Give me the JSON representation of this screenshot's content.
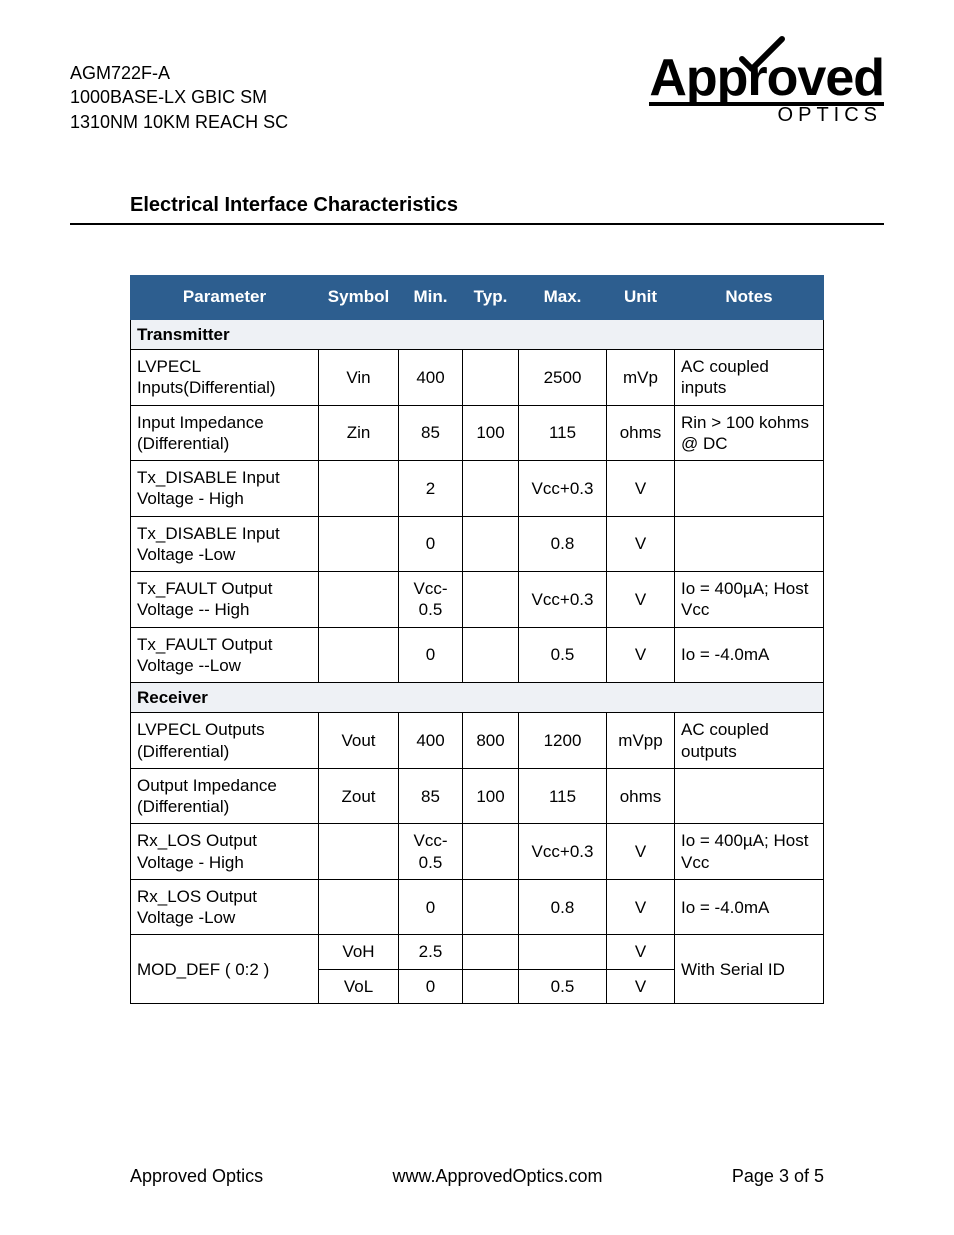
{
  "header": {
    "line1": "AGM722F-A",
    "line2": "1000BASE-LX GBIC SM",
    "line3": "1310NM 10KM REACH SC"
  },
  "logo": {
    "main": "Approved",
    "sub": "OPTICS"
  },
  "section_title": "Electrical Interface Characteristics",
  "table": {
    "headers": [
      "Parameter",
      "Symbol",
      "Min.",
      "Typ.",
      "Max.",
      "Unit",
      "Notes"
    ],
    "section1_label": "Transmitter",
    "section2_label": "Receiver",
    "tx_rows": [
      {
        "param": "LVPECL Inputs(Differential)",
        "sym": "Vin",
        "min": "400",
        "typ": "",
        "max": "2500",
        "unit": "mVp",
        "notes": "AC coupled inputs"
      },
      {
        "param": "Input Impedance (Differential)",
        "sym": "Zin",
        "min": "85",
        "typ": "100",
        "max": "115",
        "unit": "ohms",
        "notes": "Rin > 100 kohms @ DC"
      },
      {
        "param": "Tx_DISABLE Input Voltage - High",
        "sym": "",
        "min": "2",
        "typ": "",
        "max": "Vcc+0.3",
        "unit": "V",
        "notes": ""
      },
      {
        "param": "Tx_DISABLE Input Voltage -Low",
        "sym": "",
        "min": "0",
        "typ": "",
        "max": "0.8",
        "unit": "V",
        "notes": ""
      },
      {
        "param": "Tx_FAULT Output Voltage -- High",
        "sym": "",
        "min": "Vcc-0.5",
        "typ": "",
        "max": "Vcc+0.3",
        "unit": "V",
        "notes": "Io = 400µA; Host Vcc"
      },
      {
        "param": "Tx_FAULT Output Voltage --Low",
        "sym": "",
        "min": "0",
        "typ": "",
        "max": "0.5",
        "unit": "V",
        "notes": "Io = -4.0mA"
      }
    ],
    "rx_rows": [
      {
        "param": "LVPECL Outputs (Differential)",
        "sym": "Vout",
        "min": "400",
        "typ": "800",
        "max": "1200",
        "unit": "mVpp",
        "notes": "AC coupled outputs"
      },
      {
        "param": "Output Impedance (Differential)",
        "sym": "Zout",
        "min": "85",
        "typ": "100",
        "max": "115",
        "unit": "ohms",
        "notes": ""
      },
      {
        "param": "Rx_LOS Output Voltage - High",
        "sym": "",
        "min": "Vcc-0.5",
        "typ": "",
        "max": "Vcc+0.3",
        "unit": "V",
        "notes": "Io = 400µA; Host Vcc"
      },
      {
        "param": "Rx_LOS Output Voltage -Low",
        "sym": "",
        "min": "0",
        "typ": "",
        "max": "0.8",
        "unit": "V",
        "notes": "Io = -4.0mA"
      }
    ],
    "moddef": {
      "param": "MOD_DEF ( 0:2 )",
      "r1": {
        "sym": "VoH",
        "min": "2.5",
        "typ": "",
        "max": "",
        "unit": "V"
      },
      "r2": {
        "sym": "VoL",
        "min": "0",
        "typ": "",
        "max": "0.5",
        "unit": "V"
      },
      "notes": "With Serial ID"
    }
  },
  "footer": {
    "left": "Approved Optics",
    "center": "www.ApprovedOptics.com",
    "right": "Page 3 of 5"
  },
  "colors": {
    "header_bg": "#2d5e8f",
    "section_bg": "#eef1f5"
  }
}
